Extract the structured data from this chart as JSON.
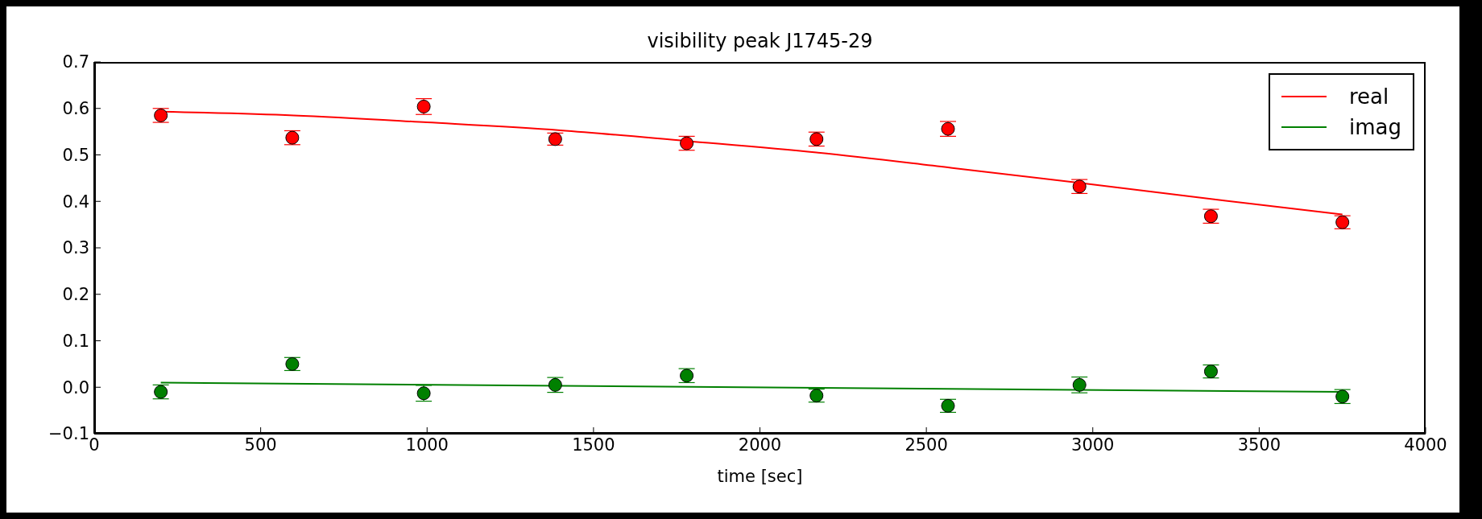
{
  "chart_data": {
    "type": "scatter",
    "title": "visibility peak J1745-29",
    "xlabel": "time [sec]",
    "xlim": [
      0,
      4000
    ],
    "xticks": [
      0,
      500,
      1000,
      1500,
      2000,
      2500,
      3000,
      3500,
      4000
    ],
    "ylim": [
      -0.1,
      0.7
    ],
    "yticks": [
      {
        "value": -0.1,
        "label": "−0.1"
      },
      {
        "value": 0,
        "label": "0.0"
      },
      {
        "value": 0.1,
        "label": "0.1"
      },
      {
        "value": 0.2,
        "label": "0.2"
      },
      {
        "value": 0.3,
        "label": "0.3"
      },
      {
        "value": 0.4,
        "label": "0.4"
      },
      {
        "value": 0.5,
        "label": "0.5"
      },
      {
        "value": 0.6,
        "label": "0.6"
      },
      {
        "value": 0.7,
        "label": "0.7"
      }
    ],
    "grid": false,
    "legend": "top right",
    "series": [
      {
        "marker": "circle",
        "color": "#ff0000",
        "x": [
          200,
          595,
          990,
          1385,
          1780,
          2170,
          2565,
          2960,
          3355,
          3750
        ],
        "values": [
          0.585,
          0.537,
          0.604,
          0.534,
          0.525,
          0.534,
          0.556,
          0.432,
          0.368,
          0.355
        ],
        "errors": [
          0.015,
          0.015,
          0.017,
          0.013,
          0.015,
          0.015,
          0.016,
          0.015,
          0.015,
          0.014
        ]
      },
      {
        "marker": "circle",
        "color": "#008000",
        "x": [
          200,
          595,
          990,
          1385,
          1780,
          2170,
          2565,
          2960,
          3355,
          3750
        ],
        "values": [
          -0.01,
          0.05,
          -0.013,
          0.005,
          0.025,
          -0.018,
          -0.04,
          0.005,
          0.034,
          -0.02
        ],
        "errors": [
          0.015,
          0.014,
          0.017,
          0.016,
          0.015,
          0.014,
          0.014,
          0.017,
          0.014,
          0.015
        ]
      },
      {
        "type": "line",
        "marker": "none",
        "name": "real",
        "color": "#ff0000",
        "x": [
          200,
          600,
          1000,
          1400,
          1780,
          2170,
          2565,
          2960,
          3355,
          3750
        ],
        "values": [
          0.593,
          0.585,
          0.57,
          0.553,
          0.53,
          0.505,
          0.473,
          0.44,
          0.405,
          0.372
        ]
      },
      {
        "type": "line",
        "marker": "none",
        "name": "imag",
        "color": "#008000",
        "x": [
          200,
          3750
        ],
        "values": [
          0.01,
          -0.01
        ]
      }
    ]
  }
}
